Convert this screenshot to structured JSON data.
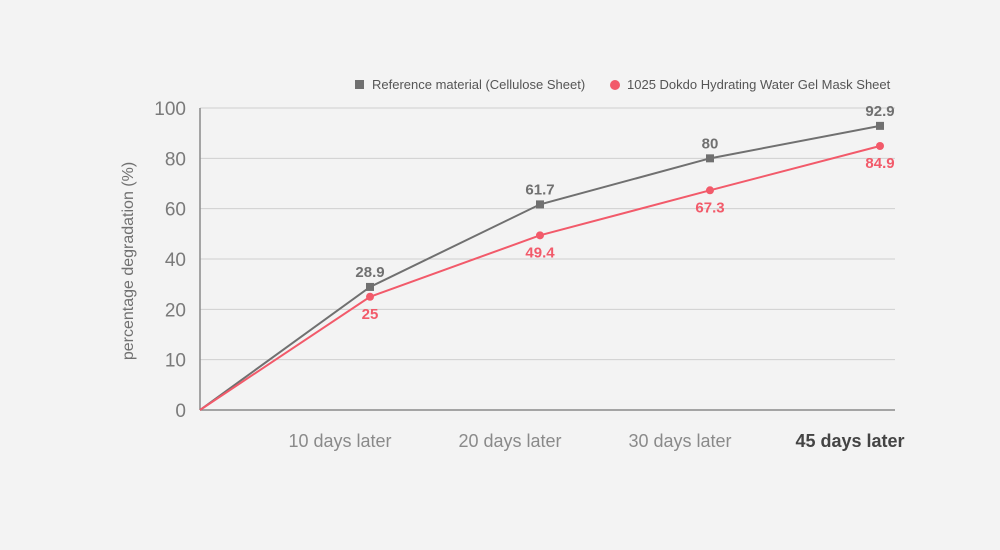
{
  "chart_data": {
    "type": "line",
    "ylabel": "percentage degradation (%)",
    "xlabel": "",
    "categories": [
      "",
      "10 days later",
      "20 days later",
      "30 days later",
      "45 days later"
    ],
    "ytick_labels": [
      "0",
      "10",
      "20",
      "40",
      "60",
      "80",
      "100"
    ],
    "ylim": [
      0,
      100
    ],
    "grid": true,
    "legend_position": "top-right",
    "series": [
      {
        "name": "Reference material (Cellulose Sheet)",
        "values": [
          0,
          28.9,
          61.7,
          80,
          92.9
        ],
        "point_labels": [
          "",
          "28.9",
          "61.7",
          "80",
          "92.9"
        ],
        "color": "#707070",
        "marker": "square"
      },
      {
        "name": "1025 Dokdo Hydrating Water Gel Mask Sheet",
        "values": [
          0,
          25,
          49.4,
          67.3,
          84.9
        ],
        "point_labels": [
          "",
          "25",
          "49.4",
          "67.3",
          "84.9"
        ],
        "color": "#f25a6a",
        "marker": "circle"
      }
    ]
  }
}
